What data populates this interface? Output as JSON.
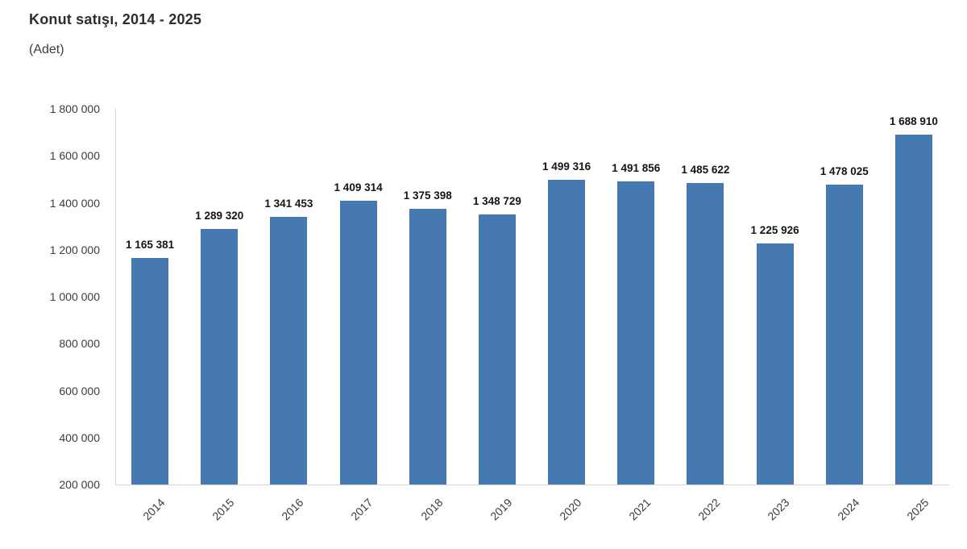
{
  "header": {
    "title": "Konut satışı, 2014 - 2025",
    "subtitle": "(Adet)"
  },
  "colors": {
    "bar": "#4678b2",
    "axis_line": "#d6d6d6",
    "title_text": "#2d2d2d",
    "tick_text": "#3c3c3c",
    "value_label_text": "#141414",
    "background": "#ffffff"
  },
  "chart_data": {
    "type": "bar",
    "title": "Konut satışı, 2014 - 2025",
    "subtitle": "(Adet)",
    "xlabel": "",
    "ylabel": "",
    "categories": [
      "2014",
      "2015",
      "2016",
      "2017",
      "2018",
      "2019",
      "2020",
      "2021",
      "2022",
      "2023",
      "2024",
      "2025"
    ],
    "values": [
      1165381,
      1289320,
      1341453,
      1409314,
      1375398,
      1348729,
      1499316,
      1491856,
      1485622,
      1225926,
      1478025,
      1688910
    ],
    "value_labels": [
      "1 165 381",
      "1 289 320",
      "1 341 453",
      "1 409 314",
      "1 375 398",
      "1 348 729",
      "1 499 316",
      "1 491 856",
      "1 485 622",
      "1 225 926",
      "1 478 025",
      "1 688 910"
    ],
    "ylim": [
      200000,
      1800000
    ],
    "ytick_step": 200000,
    "ytick_labels": [
      "200 000",
      "400 000",
      "600 000",
      "800 000",
      "1 000 000",
      "1 200 000",
      "1 400 000",
      "1 600 000",
      "1 800 000"
    ],
    "grid": false,
    "legend": "none",
    "bar_color": "#4678b2",
    "x_label_rotation": -45
  }
}
